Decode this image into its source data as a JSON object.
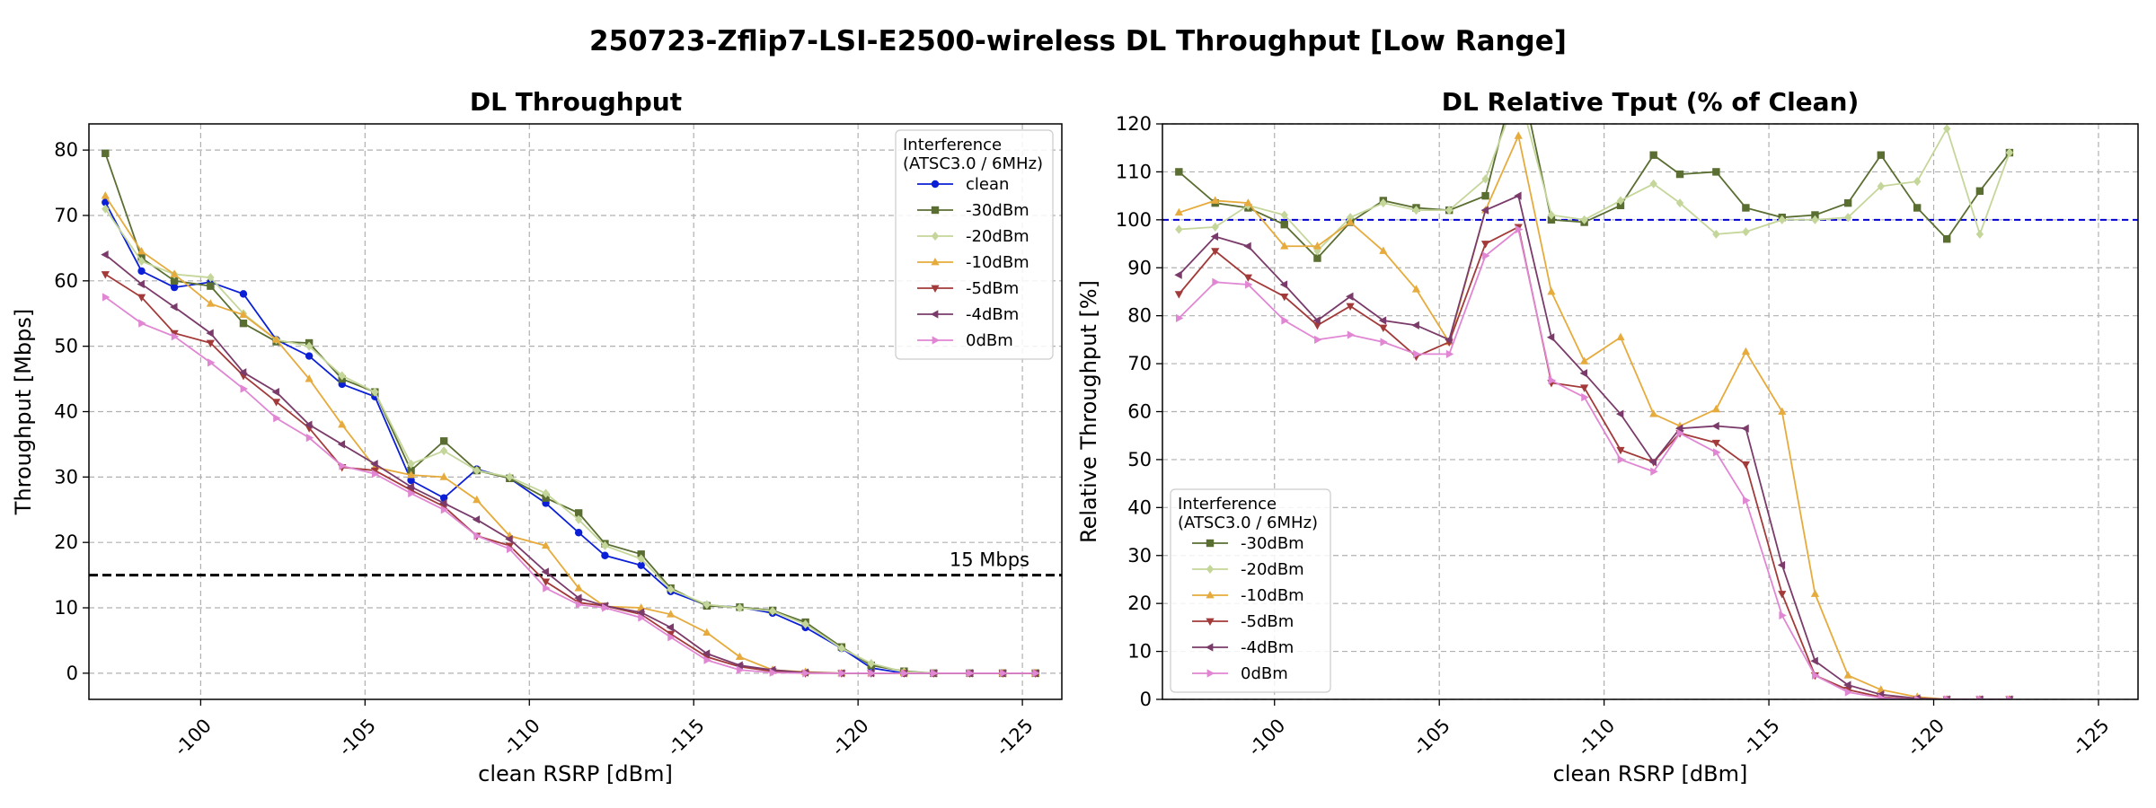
{
  "suptitle": "250723-Zflip7-LSI-E2500-wireless DL Throughput [Low Range]",
  "chart_data": [
    {
      "type": "line",
      "title": "DL Throughput",
      "xlabel": "clean RSRP [dBm]",
      "ylabel": "Throughput [Mbps]",
      "xlim": [
        -96.6,
        -126.2
      ],
      "ylim": [
        -4,
        84
      ],
      "xticks": [
        -100,
        -105,
        -110,
        -115,
        -120,
        -125
      ],
      "xtick_labels": [
        "-100",
        "-105",
        "-110",
        "-115",
        "-120",
        "-125"
      ],
      "yticks": [
        0,
        10,
        20,
        30,
        40,
        50,
        60,
        70,
        80
      ],
      "ytick_labels": [
        "0",
        "10",
        "20",
        "30",
        "40",
        "50",
        "60",
        "70",
        "80"
      ],
      "grid": true,
      "legend_title": "Interference\n(ATSC3.0 / 6MHz)",
      "legend_position": "upper right",
      "reference_line": {
        "y": 15,
        "label": "15 Mbps",
        "color": "#000000"
      },
      "x": [
        -97.1,
        -98.2,
        -99.2,
        -100.3,
        -101.3,
        -102.3,
        -103.3,
        -104.3,
        -105.3,
        -106.4,
        -107.4,
        -108.4,
        -109.4,
        -110.5,
        -111.5,
        -112.3,
        -113.4,
        -114.3,
        -115.4,
        -116.4,
        -117.4,
        -118.4,
        -119.5,
        -120.4,
        -121.4,
        -122.3,
        -123.4,
        -124.4,
        -125.4
      ],
      "series": [
        {
          "name": "clean",
          "color": "#0b1fd6",
          "marker": "circle",
          "values": [
            72,
            61.5,
            59,
            59.8,
            58,
            51,
            48.5,
            44.2,
            42.3,
            29.5,
            26.8,
            31.2,
            29.8,
            26,
            21.5,
            18,
            16.5,
            12.5,
            10.4,
            10.1,
            9.2,
            7,
            3.8,
            0.8,
            0,
            0,
            0,
            0,
            0
          ]
        },
        {
          "name": "-30dBm",
          "color": "#5a6e32",
          "marker": "square",
          "values": [
            79.5,
            63.5,
            60,
            59.2,
            53.5,
            50.7,
            50.5,
            45,
            43,
            31,
            35.5,
            31,
            29.8,
            26.8,
            24.5,
            19.8,
            18.2,
            13,
            10.3,
            10.1,
            9.6,
            7.8,
            4,
            1.2,
            0.3,
            0,
            0,
            0,
            0
          ]
        },
        {
          "name": "-20dBm",
          "color": "#c5d69a",
          "marker": "diamond",
          "values": [
            71,
            63,
            61,
            60.5,
            55,
            51,
            50,
            45.5,
            43,
            32,
            34,
            31,
            30,
            27.5,
            23.5,
            19.5,
            17.5,
            12.8,
            10.5,
            10,
            9.5,
            7.5,
            3.8,
            1.5,
            0.2,
            0,
            0,
            0,
            0
          ]
        },
        {
          "name": "-10dBm",
          "color": "#e6ab3c",
          "marker": "triangle-up",
          "values": [
            73,
            64.5,
            61,
            56.5,
            54.8,
            51,
            45,
            38,
            31.5,
            30.3,
            30,
            26.5,
            21,
            19.5,
            13,
            10.2,
            10,
            9,
            6.2,
            2.5,
            0.5,
            0.2,
            0,
            0,
            0,
            0,
            0,
            0,
            0
          ]
        },
        {
          "name": "-5dBm",
          "color": "#a33a3a",
          "marker": "triangle-down",
          "values": [
            61,
            57.5,
            52,
            50.5,
            45.5,
            41.5,
            37.5,
            31.5,
            31,
            28,
            25.5,
            21,
            19.5,
            14,
            10.8,
            10.3,
            9,
            6,
            2.5,
            1,
            0.3,
            0,
            0,
            0,
            0,
            0,
            0,
            0,
            0
          ]
        },
        {
          "name": "-4dBm",
          "color": "#7a3b6a",
          "marker": "triangle-left",
          "values": [
            64,
            59.5,
            56,
            52,
            46,
            43,
            38,
            35,
            32,
            28.5,
            26,
            23.5,
            20.5,
            15.5,
            11.5,
            10.3,
            9.3,
            7,
            3,
            1.2,
            0.5,
            0.1,
            0,
            0,
            0,
            0,
            0,
            0,
            0
          ]
        },
        {
          "name": "0dBm",
          "color": "#e086d3",
          "marker": "triangle-right",
          "values": [
            57.5,
            53.5,
            51.5,
            47.5,
            43.5,
            39,
            36,
            31.7,
            30.5,
            27.5,
            25,
            21,
            19,
            13,
            10.5,
            10,
            8.5,
            5.5,
            2,
            0.5,
            0.1,
            0,
            0,
            0,
            0,
            0,
            0,
            0,
            0
          ]
        }
      ]
    },
    {
      "type": "line",
      "title": "DL Relative Tput (% of Clean)",
      "xlabel": "clean RSRP [dBm]",
      "ylabel": "Relative Throughput [%]",
      "xlim": [
        -96.6,
        -126.2
      ],
      "ylim": [
        0,
        120
      ],
      "xticks": [
        -100,
        -105,
        -110,
        -115,
        -120,
        -125
      ],
      "xtick_labels": [
        "-100",
        "-105",
        "-110",
        "-115",
        "-120",
        "-125"
      ],
      "yticks": [
        0,
        10,
        20,
        30,
        40,
        50,
        60,
        70,
        80,
        90,
        100,
        110,
        120
      ],
      "ytick_labels": [
        "0",
        "10",
        "20",
        "30",
        "40",
        "50",
        "60",
        "70",
        "80",
        "90",
        "100",
        "110",
        "120"
      ],
      "grid": true,
      "legend_title": "Interference\n(ATSC3.0 / 6MHz)",
      "legend_position": "lower left",
      "reference_line": {
        "y": 100,
        "label": "",
        "color": "#0000cc"
      },
      "x": [
        -97.1,
        -98.2,
        -99.2,
        -100.3,
        -101.3,
        -102.3,
        -103.3,
        -104.3,
        -105.3,
        -106.4,
        -107.4,
        -108.4,
        -109.4,
        -110.5,
        -111.5,
        -112.3,
        -113.4,
        -114.3,
        -115.4,
        -116.4,
        -117.4,
        -118.4,
        -119.5,
        -120.4,
        -121.4,
        -122.3
      ],
      "series": [
        {
          "name": "-30dBm",
          "color": "#5a6e32",
          "marker": "square",
          "values": [
            110,
            103.5,
            102.5,
            99,
            92,
            99.5,
            104,
            102.5,
            102,
            105,
            132,
            100,
            99.5,
            103,
            113.5,
            109.5,
            110,
            102.5,
            100.5,
            101,
            103.5,
            113.5,
            102.5,
            96,
            106,
            114
          ]
        },
        {
          "name": "-20dBm",
          "color": "#c5d69a",
          "marker": "diamond",
          "values": [
            98,
            98.5,
            103,
            101,
            93.5,
            100.5,
            103.5,
            102,
            102,
            108.5,
            127,
            101,
            100,
            104,
            107.5,
            103.5,
            97,
            97.5,
            100,
            100,
            100.5,
            107,
            108,
            119,
            97,
            114
          ]
        },
        {
          "name": "-10dBm",
          "color": "#e6ab3c",
          "marker": "triangle-up",
          "values": [
            101.5,
            104,
            103.5,
            94.5,
            94.5,
            99.5,
            93.5,
            85.5,
            74.5,
            102,
            117.5,
            85,
            70.5,
            75.5,
            59.5,
            57,
            60.5,
            72.5,
            60,
            22,
            5,
            2,
            0.5,
            0,
            0,
            0
          ]
        },
        {
          "name": "-5dBm",
          "color": "#a33a3a",
          "marker": "triangle-down",
          "values": [
            84.5,
            93.5,
            88,
            84,
            78,
            82,
            77.5,
            71.5,
            74.5,
            95,
            98.5,
            66,
            65,
            52,
            49.5,
            55.5,
            53.5,
            49,
            22,
            5,
            2,
            0.5,
            0,
            0,
            0,
            0
          ]
        },
        {
          "name": "-4dBm",
          "color": "#7a3b6a",
          "marker": "triangle-left",
          "values": [
            88.5,
            96.5,
            94.5,
            86.5,
            79,
            84,
            79,
            78,
            75,
            102,
            105,
            75.5,
            68,
            59.5,
            49.5,
            56.5,
            57,
            56.5,
            28,
            8,
            3,
            1,
            0.2,
            0,
            0,
            0
          ]
        },
        {
          "name": "0dBm",
          "color": "#e086d3",
          "marker": "triangle-right",
          "values": [
            79.5,
            87,
            86.5,
            79,
            75,
            76,
            74.5,
            72,
            72,
            92.5,
            98,
            66.5,
            63,
            50,
            47.5,
            55.5,
            51.5,
            41.5,
            17.5,
            5,
            1.5,
            0.3,
            0,
            0,
            0,
            0
          ]
        }
      ]
    }
  ]
}
